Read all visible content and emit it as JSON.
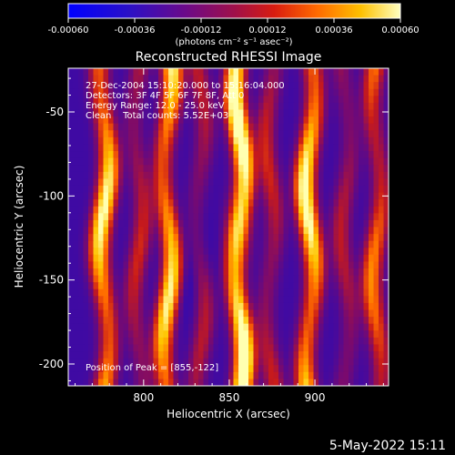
{
  "chart_data": {
    "type": "heatmap",
    "title": "Reconstructed RHESSI Image",
    "xlabel": "Heliocentric X (arcsec)",
    "ylabel": "Heliocentric Y (arcsec)",
    "xlim": [
      756,
      943
    ],
    "ylim": [
      -213,
      -24
    ],
    "xticks": [
      800,
      850,
      900
    ],
    "yticks": [
      -50,
      -100,
      -150,
      -200
    ],
    "colorbar": {
      "ticks": [
        "-0.00060",
        "-0.00036",
        "-0.00012",
        "0.00012",
        "0.00036",
        "0.00060"
      ],
      "range": [
        -0.0006,
        0.0006
      ],
      "units": "(photons cm⁻² s⁻¹ asec⁻²)"
    },
    "annotations": {
      "time": "27-Dec-2004 15:10:20.000 to 15:16:04.000",
      "detectors": "Detectors: 3F 4F 5F 6F 7F 8F, Att 0",
      "energy": "Energy Range: 12.0 - 25.0 keV",
      "clean": "Clean    Total counts: 5.52E+03",
      "peak": "Position of Peak = [855,-122]"
    },
    "stripes_x": [
      777,
      797,
      814,
      833,
      856,
      874,
      897,
      918,
      936
    ],
    "stripe_amplitude": [
      0.85,
      0.35,
      0.85,
      0.3,
      1.0,
      0.35,
      0.9,
      0.3,
      0.55
    ],
    "peak": [
      855,
      -122
    ],
    "colormap": [
      "#0000ff",
      "#3a0aa8",
      "#7a0a6e",
      "#c81a1a",
      "#ff6a00",
      "#ffc400",
      "#ffffb0"
    ]
  },
  "footer": {
    "date": "5-May-2022 15:11"
  }
}
